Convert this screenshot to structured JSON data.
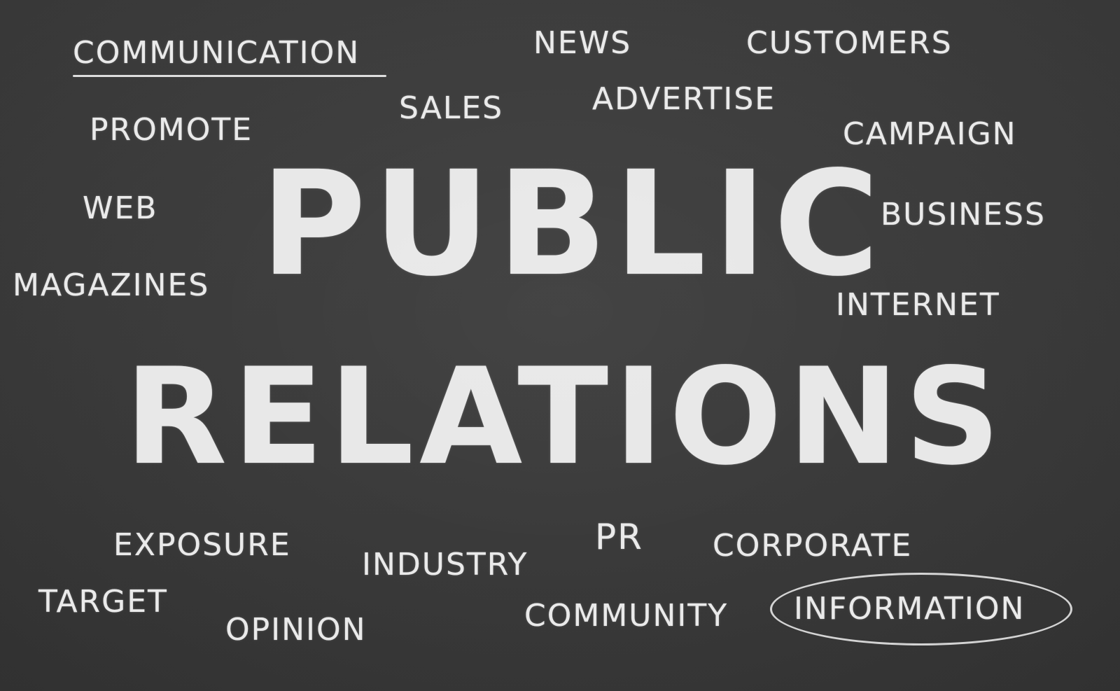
{
  "words": {
    "communication": "COMMUNICATION",
    "news": "NEWS",
    "customers": "CUSTOMERS",
    "sales": "SALES",
    "advertise": "ADVERTISE",
    "promote": "PROMOTE",
    "campaign": "CAMPAIGN",
    "web": "WEB",
    "business": "BUSINESS",
    "magazines": "MAGAZINES",
    "internet": "INTERNET",
    "public": "PUBLIC",
    "relations": "RELATIONS",
    "exposure": "EXPOSURE",
    "industry": "INDUSTRY",
    "pr": "PR",
    "corporate": "CORPORATE",
    "target": "TARGET",
    "opinion": "OPINION",
    "community": "COMMUNITY",
    "information": "INFORMATION"
  },
  "colors": {
    "chalkboard": "#3a3a3a",
    "chalk": "#f2f2f2"
  }
}
